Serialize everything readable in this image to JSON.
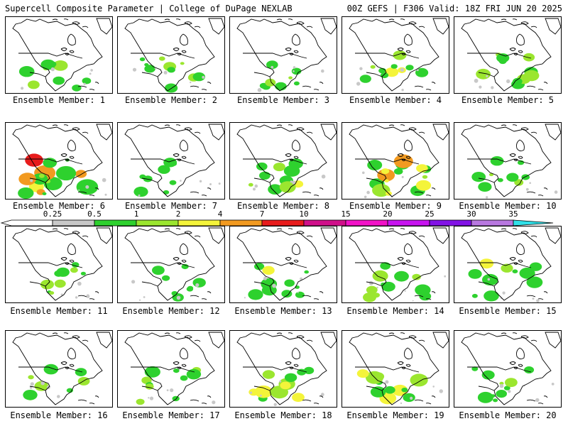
{
  "header": {
    "left": "Supercell Composite Parameter | College of DuPage NEXLAB",
    "right": "00Z GEFS | F306 Valid: 18Z FRI JUN 20 2025"
  },
  "panels": [
    {
      "label": "Ensemble Member: 1",
      "member": 1,
      "intensity": 0.35
    },
    {
      "label": "Ensemble Member: 2",
      "member": 2,
      "intensity": 0.45
    },
    {
      "label": "Ensemble Member: 3",
      "member": 3,
      "intensity": 0.3
    },
    {
      "label": "Ensemble Member: 4",
      "member": 4,
      "intensity": 0.45
    },
    {
      "label": "Ensemble Member: 5",
      "member": 5,
      "intensity": 0.4
    },
    {
      "label": "Ensemble Member: 6",
      "member": 6,
      "intensity": 1.0
    },
    {
      "label": "Ensemble Member: 7",
      "member": 7,
      "intensity": 0.3
    },
    {
      "label": "Ensemble Member: 8",
      "member": 8,
      "intensity": 0.5
    },
    {
      "label": "Ensemble Member: 9",
      "member": 9,
      "intensity": 0.8
    },
    {
      "label": "Ensemble Member: 10",
      "member": 10,
      "intensity": 0.35
    },
    {
      "label": "Ensemble Member: 11",
      "member": 11,
      "intensity": 0.35
    },
    {
      "label": "Ensemble Member: 12",
      "member": 12,
      "intensity": 0.25
    },
    {
      "label": "Ensemble Member: 13",
      "member": 13,
      "intensity": 0.45
    },
    {
      "label": "Ensemble Member: 14",
      "member": 14,
      "intensity": 0.5
    },
    {
      "label": "Ensemble Member: 15",
      "member": 15,
      "intensity": 0.45
    },
    {
      "label": "Ensemble Member: 16",
      "member": 16,
      "intensity": 0.3
    },
    {
      "label": "Ensemble Member: 17",
      "member": 17,
      "intensity": 0.45
    },
    {
      "label": "Ensemble Member: 18",
      "member": 18,
      "intensity": 0.6
    },
    {
      "label": "Ensemble Member: 19",
      "member": 19,
      "intensity": 0.6
    },
    {
      "label": "Ensemble Member: 20",
      "member": 20,
      "intensity": 0.4
    }
  ],
  "colorbar": {
    "labels": [
      "0.25",
      "0.5",
      "1",
      "2",
      "4",
      "7",
      "10",
      "15",
      "20",
      "25",
      "30",
      "35"
    ],
    "colors": [
      "#c8c8c8",
      "#2ed12e",
      "#9be62f",
      "#f4f43a",
      "#f29a20",
      "#e81c1c",
      "#d0108a",
      "#f212c8",
      "#c814f0",
      "#8212e6",
      "#b878e0",
      "#30e0e8"
    ]
  }
}
